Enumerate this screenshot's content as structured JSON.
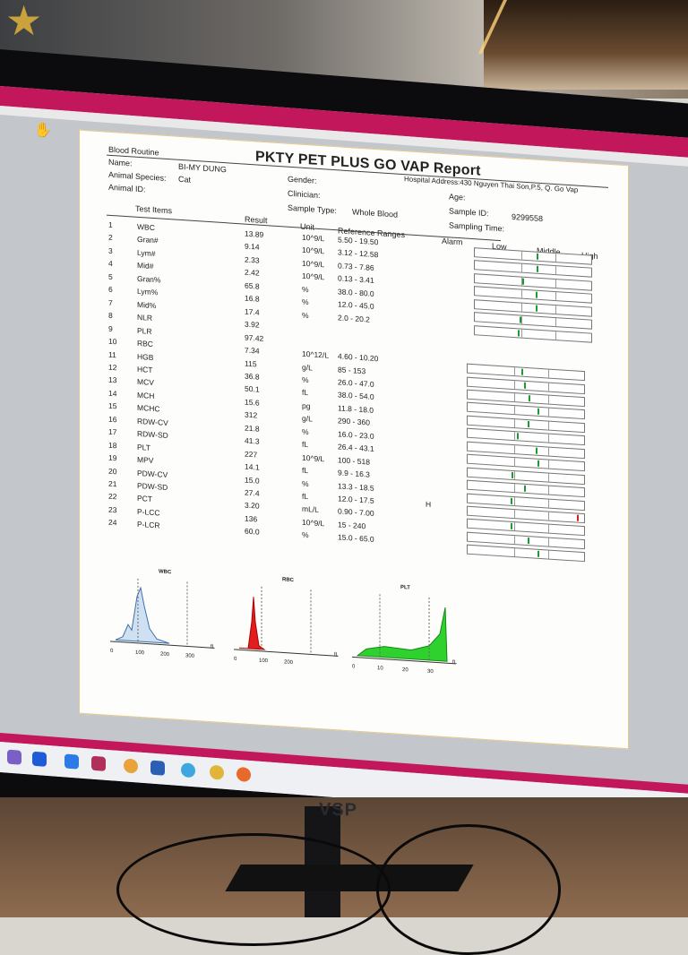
{
  "report": {
    "title": "PKTY PET PLUS GO VAP Report",
    "section": "Blood Routine",
    "name_label": "Name:",
    "name_value": "BI-MY DUNG",
    "species_label": "Animal Species:",
    "species_value": "Cat",
    "animal_id_label": "Animal ID:",
    "gender_label": "Gender:",
    "clinician_label": "Clinician:",
    "sample_type_label": "Sample Type:",
    "sample_type_value": "Whole Blood",
    "hospital_address": "Hospital Address:430 Nguyen Thai Son,P.5, Q. Go Vap",
    "age_label": "Age:",
    "sample_id_label": "Sample ID:",
    "sample_id_value": "9299558",
    "sampling_time_label": "Sampling Time:",
    "columns": {
      "test": "Test Items",
      "result": "Result",
      "unit": "Unit",
      "reference": "Reference Ranges",
      "alarm": "Alarm",
      "low": "Low",
      "middle": "Middle",
      "high": "High"
    },
    "rows": [
      {
        "no": "1",
        "item": "WBC",
        "result": "13.89",
        "unit": "10^9/L",
        "ref": "5.50 - 19.50",
        "alarm": "",
        "pos": 0.55
      },
      {
        "no": "2",
        "item": "Gran#",
        "result": "9.14",
        "unit": "10^9/L",
        "ref": "3.12 - 12.58",
        "alarm": "",
        "pos": 0.55
      },
      {
        "no": "3",
        "item": "Lym#",
        "result": "2.33",
        "unit": "10^9/L",
        "ref": "0.73 - 7.86",
        "alarm": "",
        "pos": 0.42
      },
      {
        "no": "4",
        "item": "Mid#",
        "result": "2.42",
        "unit": "10^9/L",
        "ref": "0.13 - 3.41",
        "alarm": "",
        "pos": 0.54
      },
      {
        "no": "5",
        "item": "Gran%",
        "result": "65.8",
        "unit": "%",
        "ref": "38.0 - 80.0",
        "alarm": "",
        "pos": 0.54
      },
      {
        "no": "6",
        "item": "Lym%",
        "result": "16.8",
        "unit": "%",
        "ref": "12.0 - 45.0",
        "alarm": "",
        "pos": 0.4
      },
      {
        "no": "7",
        "item": "Mid%",
        "result": "17.4",
        "unit": "%",
        "ref": "2.0 - 20.2",
        "alarm": "",
        "pos": 0.38
      },
      {
        "no": "8",
        "item": "NLR",
        "result": "3.92",
        "unit": "",
        "ref": "",
        "alarm": "",
        "pos": null
      },
      {
        "no": "9",
        "item": "PLR",
        "result": "97.42",
        "unit": "",
        "ref": "",
        "alarm": "",
        "pos": null
      },
      {
        "no": "10",
        "item": "RBC",
        "result": "7.34",
        "unit": "10^12/L",
        "ref": "4.60 - 10.20",
        "alarm": "",
        "pos": 0.48
      },
      {
        "no": "11",
        "item": "HGB",
        "result": "115",
        "unit": "g/L",
        "ref": "85 - 153",
        "alarm": "",
        "pos": 0.5
      },
      {
        "no": "12",
        "item": "HCT",
        "result": "36.8",
        "unit": "%",
        "ref": "26.0 - 47.0",
        "alarm": "",
        "pos": 0.54
      },
      {
        "no": "13",
        "item": "MCV",
        "result": "50.1",
        "unit": "fL",
        "ref": "38.0 - 54.0",
        "alarm": "",
        "pos": 0.62
      },
      {
        "no": "14",
        "item": "MCH",
        "result": "15.6",
        "unit": "pg",
        "ref": "11.8 - 18.0",
        "alarm": "",
        "pos": 0.53
      },
      {
        "no": "15",
        "item": "MCHC",
        "result": "312",
        "unit": "g/L",
        "ref": "290 - 360",
        "alarm": "",
        "pos": 0.44
      },
      {
        "no": "16",
        "item": "RDW-CV",
        "result": "21.8",
        "unit": "%",
        "ref": "16.0 - 23.0",
        "alarm": "",
        "pos": 0.6
      },
      {
        "no": "17",
        "item": "RDW-SD",
        "result": "41.3",
        "unit": "fL",
        "ref": "26.4 - 43.1",
        "alarm": "",
        "pos": 0.62
      },
      {
        "no": "18",
        "item": "PLT",
        "result": "227",
        "unit": "10^9/L",
        "ref": "100 - 518",
        "alarm": "",
        "pos": 0.39
      },
      {
        "no": "19",
        "item": "MPV",
        "result": "14.1",
        "unit": "fL",
        "ref": "9.9 - 16.3",
        "alarm": "",
        "pos": 0.5
      },
      {
        "no": "20",
        "item": "PDW-CV",
        "result": "15.0",
        "unit": "%",
        "ref": "13.3 - 18.5",
        "alarm": "",
        "pos": 0.38
      },
      {
        "no": "21",
        "item": "PDW-SD",
        "result": "27.4",
        "unit": "fL",
        "ref": "12.0 - 17.5",
        "alarm": "H",
        "pos": 0.97
      },
      {
        "no": "22",
        "item": "PCT",
        "result": "3.20",
        "unit": "mL/L",
        "ref": "0.90 - 7.00",
        "alarm": "",
        "pos": 0.38
      },
      {
        "no": "23",
        "item": "P-LCC",
        "result": "136",
        "unit": "10^9/L",
        "ref": "15 - 240",
        "alarm": "",
        "pos": 0.53
      },
      {
        "no": "24",
        "item": "P-LCR",
        "result": "60.0",
        "unit": "%",
        "ref": "15.0 - 65.0",
        "alarm": "",
        "pos": 0.62
      }
    ],
    "histograms": [
      {
        "label": "WBC",
        "ticks": [
          "0",
          "100",
          "200",
          "300"
        ],
        "unit": "fL",
        "color": "#cfe0f2",
        "stroke": "#3b6ea8"
      },
      {
        "label": "RBC",
        "ticks": [
          "0",
          "100",
          "200"
        ],
        "unit": "fL",
        "color": "#e21d1d",
        "stroke": "#a00"
      },
      {
        "label": "PLT",
        "ticks": [
          "0",
          "10",
          "20",
          "30"
        ],
        "unit": "fL",
        "color": "#2ed12e",
        "stroke": "#118a11"
      }
    ]
  },
  "monitor": {
    "brand": "VSP"
  },
  "colors": {
    "accent_bar": "#c2185b",
    "normal_marker": "#1e9b2e",
    "high_marker": "#d21f1f"
  }
}
